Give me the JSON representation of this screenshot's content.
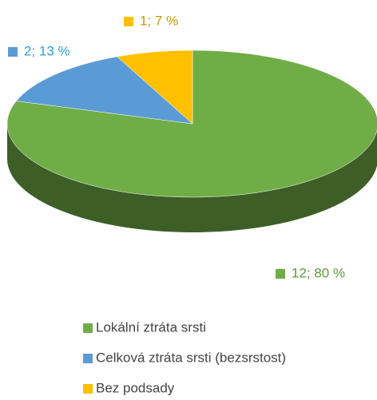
{
  "chart_data": {
    "type": "pie",
    "categories": [
      "Lokální ztráta srsti",
      "Celková ztráta srsti (bezsrstost)",
      "Bez podsady"
    ],
    "values": [
      12,
      2,
      1
    ],
    "value_labels": [
      "12; 80 %",
      "2; 13 %",
      "1; 7 %"
    ],
    "colors": [
      "#70ad47",
      "#5b9bd5",
      "#ffc000"
    ],
    "legend": "bottom"
  }
}
